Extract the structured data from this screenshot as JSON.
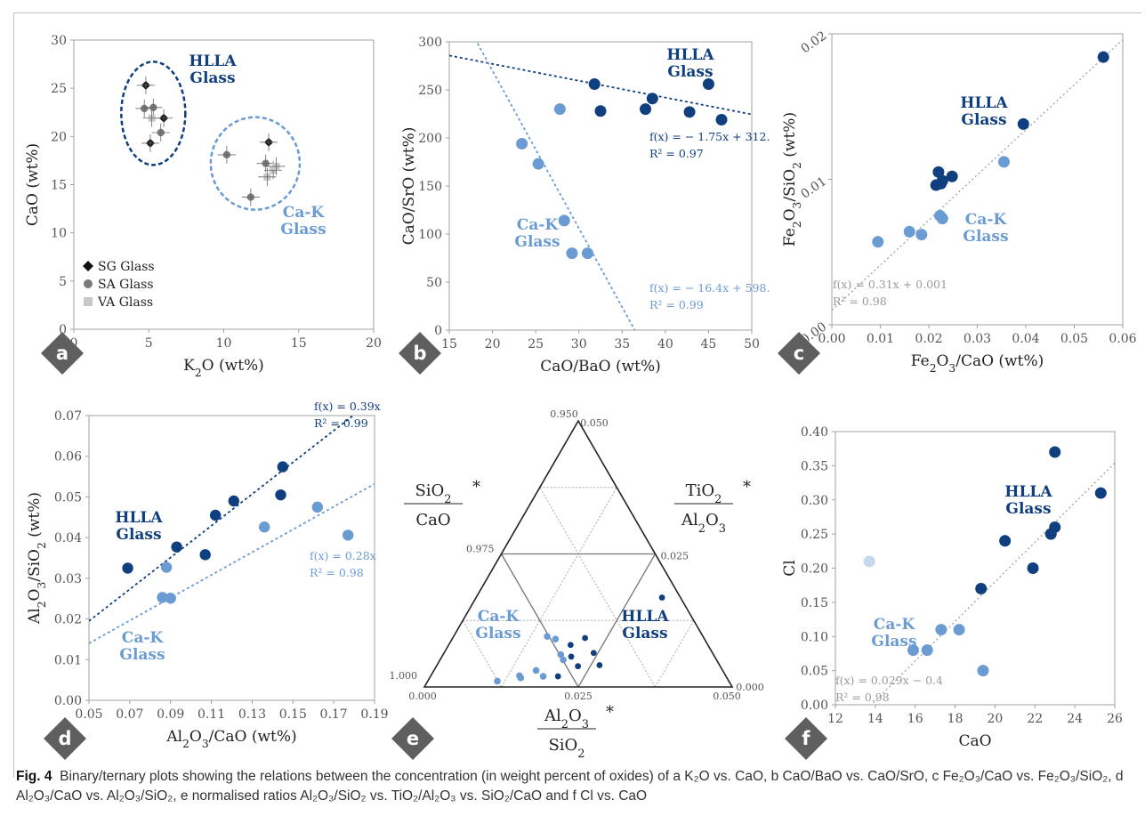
{
  "caption": {
    "label": "Fig. 4",
    "text": "Binary/ternary plots showing the relations between the concentration (in weight percent of oxides) of a K₂O vs. CaO, b CaO/BaO vs. CaO/SrO, c Fe₂O₃/CaO vs. Fe₂O₃/SiO₂, d Al₂O₃/CaO vs. Al₂O₃/SiO₂, e normalised ratios Al₂O₃/SiO₂ vs. TiO₂/Al₂O₃ vs. SiO₂/CaO and f Cl vs. CaO"
  },
  "colors": {
    "hlla": "#103f7f",
    "cak": "#6b9bd3",
    "light": "#c5d8ee",
    "grey": "#9a9a9a"
  },
  "chart_data": [
    {
      "id": "a",
      "type": "scatter",
      "panel_label": "a",
      "xlabel": "K₂O (wt%)",
      "ylabel": "CaO (wt%)",
      "xlim": [
        0,
        20
      ],
      "ylim": [
        0,
        30
      ],
      "xticks": [
        "0",
        "5",
        "10",
        "15",
        "20"
      ],
      "yticks": [
        "0",
        "5",
        "10",
        "15",
        "20",
        "25",
        "30"
      ],
      "series": [
        {
          "name": "SG Glass",
          "marker": "diamond",
          "points": [
            [
              4.8,
              25.3
            ],
            [
              5.1,
              19.3
            ],
            [
              6.0,
              21.9
            ],
            [
              13.0,
              19.4
            ]
          ]
        },
        {
          "name": "SA Glass",
          "marker": "circle",
          "points": [
            [
              4.7,
              22.9
            ],
            [
              5.3,
              23.0
            ],
            [
              5.8,
              20.4
            ],
            [
              10.2,
              18.1
            ],
            [
              12.8,
              17.2
            ],
            [
              11.8,
              13.7
            ]
          ]
        },
        {
          "name": "VA Glass",
          "marker": "square",
          "points": [
            [
              5.2,
              21.9
            ],
            [
              13.3,
              16.5
            ],
            [
              12.9,
              15.8
            ],
            [
              13.5,
              16.9
            ]
          ]
        }
      ],
      "annotations": [
        {
          "text": [
            "HLLA",
            "Glass"
          ],
          "color": "hlla"
        },
        {
          "text": [
            "Ca-K",
            "Glass"
          ],
          "color": "cak"
        }
      ],
      "legend_position": "bottom-left"
    },
    {
      "id": "b",
      "type": "scatter",
      "panel_label": "b",
      "xlabel": "CaO/BaO (wt%)",
      "ylabel": "CaO/SrO (wt%)",
      "xlim": [
        15,
        50
      ],
      "ylim": [
        0,
        300
      ],
      "xticks": [
        "15",
        "20",
        "25",
        "30",
        "35",
        "40",
        "45",
        "50"
      ],
      "yticks": [
        "0",
        "50",
        "100",
        "150",
        "200",
        "250",
        "300"
      ],
      "series": [
        {
          "name": "HLLA",
          "points": [
            [
              31.8,
              256
            ],
            [
              32.5,
              228
            ],
            [
              38.5,
              241
            ],
            [
              37.7,
              230
            ],
            [
              42.8,
              227
            ],
            [
              45.0,
              256
            ],
            [
              46.5,
              219
            ]
          ]
        },
        {
          "name": "Ca-K",
          "points": [
            [
              27.8,
              230
            ],
            [
              23.4,
              194
            ],
            [
              25.3,
              173
            ],
            [
              28.3,
              114
            ],
            [
              29.2,
              80
            ],
            [
              31.0,
              80
            ]
          ]
        }
      ],
      "trendlines": [
        {
          "series": "HLLA",
          "equation": "f(x) = − 1.75x + 312.",
          "r2": "R² = 0.97",
          "slope": -1.75,
          "intercept": 312
        },
        {
          "series": "Ca-K",
          "equation": "f(x) = − 16.4x + 598.",
          "r2": "R² = 0.99",
          "slope": -16.4,
          "intercept": 598
        }
      ],
      "annotations": [
        {
          "text": [
            "HLLA",
            "Glass"
          ],
          "color": "hlla"
        },
        {
          "text": [
            "Ca-K",
            "Glass"
          ],
          "color": "cak"
        }
      ]
    },
    {
      "id": "c",
      "type": "scatter",
      "panel_label": "c",
      "xlabel": "Fe₂O₃/CaO (wt%)",
      "ylabel": "Fe₂O₃/SiO₂ (wt%)",
      "xlim": [
        0,
        0.06
      ],
      "ylim": [
        0,
        0.02
      ],
      "xticks": [
        "0.00",
        "0.01",
        "0.02",
        "0.03",
        "0.04",
        "0.05",
        "0.06"
      ],
      "yticks": [
        "0.00",
        "0.01",
        "0.02"
      ],
      "series": [
        {
          "name": "HLLA",
          "points": [
            [
              0.056,
              0.0184
            ],
            [
              0.0395,
              0.0138
            ],
            [
              0.022,
              0.0105
            ],
            [
              0.0228,
              0.0099
            ],
            [
              0.0225,
              0.0097
            ],
            [
              0.0248,
              0.0102
            ],
            [
              0.0215,
              0.0096
            ]
          ]
        },
        {
          "name": "Ca-K",
          "points": [
            [
              0.0355,
              0.0112
            ],
            [
              0.0223,
              0.0075
            ],
            [
              0.0228,
              0.0073
            ],
            [
              0.016,
              0.0064
            ],
            [
              0.0185,
              0.0062
            ],
            [
              0.0095,
              0.0057
            ]
          ]
        }
      ],
      "trendlines": [
        {
          "series": "all",
          "equation": "f(x) = 0.31x + 0.001",
          "r2": "R² = 0.98",
          "slope": 0.31,
          "intercept": 0.001
        }
      ],
      "annotations": [
        {
          "text": [
            "HLLA",
            "Glass"
          ],
          "color": "hlla"
        },
        {
          "text": [
            "Ca-K",
            "Glass"
          ],
          "color": "cak"
        }
      ]
    },
    {
      "id": "d",
      "type": "scatter",
      "panel_label": "d",
      "xlabel": "Al₂O₃/CaO (wt%)",
      "ylabel": "Al₂O₃/SiO₂ (wt%)",
      "xlim": [
        0.05,
        0.19
      ],
      "ylim": [
        0,
        0.07
      ],
      "xticks": [
        "0.05",
        "0.07",
        "0.09",
        "0.11",
        "0.13",
        "0.15",
        "0.17",
        "0.19"
      ],
      "yticks": [
        "0.00",
        "0.01",
        "0.02",
        "0.03",
        "0.04",
        "0.05",
        "0.06",
        "0.07"
      ],
      "series": [
        {
          "name": "HLLA",
          "points": [
            [
              0.069,
              0.0325
            ],
            [
              0.093,
              0.0377
            ],
            [
              0.107,
              0.0358
            ],
            [
              0.112,
              0.0455
            ],
            [
              0.121,
              0.049
            ],
            [
              0.144,
              0.0505
            ],
            [
              0.145,
              0.0574
            ]
          ]
        },
        {
          "name": "Ca-K",
          "points": [
            [
              0.086,
              0.0253
            ],
            [
              0.09,
              0.0251
            ],
            [
              0.088,
              0.0327
            ],
            [
              0.136,
              0.0426
            ],
            [
              0.162,
              0.0475
            ],
            [
              0.177,
              0.0406
            ]
          ]
        }
      ],
      "trendlines": [
        {
          "series": "HLLA",
          "equation": "f(x) = 0.39x",
          "r2": "R² = 0.99",
          "slope": 0.39,
          "intercept": 0
        },
        {
          "series": "Ca-K",
          "equation": "f(x) = 0.28x",
          "r2": "R² = 0.98",
          "slope": 0.28,
          "intercept": 0
        }
      ],
      "annotations": [
        {
          "text": [
            "HLLA",
            "Glass"
          ],
          "color": "hlla"
        },
        {
          "text": [
            "Ca-K",
            "Glass"
          ],
          "color": "cak"
        }
      ]
    },
    {
      "id": "e",
      "type": "scatter",
      "panel_label": "e",
      "subtype": "ternary",
      "labels": {
        "top": [
          "SiO₂",
          "CaO"
        ],
        "right": [
          "TiO₂",
          "Al₂O₃"
        ],
        "bottom": [
          "Al₂O₃",
          "SiO₂"
        ],
        "star": "*"
      },
      "ticks": {
        "top_left": "0.950",
        "top_right": "0.050",
        "mid_left": "0.975",
        "mid_right": "0.025",
        "bottom_left_upper": "1.000",
        "bottom_left": "0.000",
        "bottom_mid": "0.025",
        "bottom_right": "0.050",
        "right_end": "0.000"
      },
      "series": [
        {
          "name": "HLLA",
          "points": [
            [
              0.0302,
              0.0168
            ],
            [
              0.0198,
              0.0079
            ],
            [
              0.0215,
              0.0092
            ],
            [
              0.0243,
              0.0064
            ],
            [
              0.021,
              0.0057
            ],
            [
              0.0264,
              0.0041
            ],
            [
              0.023,
              0.0039
            ],
            [
              0.0207,
              0.002
            ]
          ]
        },
        {
          "name": "Ca-K",
          "points": [
            [
              0.0152,
              0.0095
            ],
            [
              0.0168,
              0.009
            ],
            [
              0.0191,
              0.0061
            ],
            [
              0.02,
              0.0051
            ],
            [
              0.0166,
              0.0031
            ],
            [
              0.0148,
              0.0017
            ],
            [
              0.0183,
              0.002
            ],
            [
              0.0144,
              0.0021
            ],
            [
              0.0113,
              0.0011
            ]
          ]
        }
      ],
      "annotations": [
        {
          "text": [
            "HLLA",
            "Glass"
          ],
          "color": "hlla"
        },
        {
          "text": [
            "Ca-K",
            "Glass"
          ],
          "color": "cak"
        }
      ]
    },
    {
      "id": "f",
      "type": "scatter",
      "panel_label": "f",
      "xlabel": "CaO",
      "ylabel": "Cl",
      "xlim": [
        12,
        26
      ],
      "ylim": [
        0,
        0.4
      ],
      "xticks": [
        "12",
        "14",
        "16",
        "18",
        "20",
        "22",
        "24",
        "26"
      ],
      "yticks": [
        "0.00",
        "0.05",
        "0.10",
        "0.15",
        "0.20",
        "0.25",
        "0.30",
        "0.35",
        "0.40"
      ],
      "series": [
        {
          "name": "HLLA",
          "points": [
            [
              23.0,
              0.37
            ],
            [
              25.3,
              0.31
            ],
            [
              20.5,
              0.24
            ],
            [
              22.8,
              0.25
            ],
            [
              23.0,
              0.26
            ],
            [
              21.9,
              0.2
            ],
            [
              19.3,
              0.17
            ]
          ]
        },
        {
          "name": "Ca-K",
          "points": [
            [
              17.3,
              0.11
            ],
            [
              18.2,
              0.11
            ],
            [
              15.9,
              0.08
            ],
            [
              16.6,
              0.08
            ],
            [
              19.4,
              0.05
            ]
          ]
        },
        {
          "name": "light",
          "points": [
            [
              13.7,
              0.21
            ]
          ]
        }
      ],
      "trendlines": [
        {
          "series": "all",
          "equation": "f(x) = 0.029x − 0.4",
          "r2": "R² = 0.98",
          "slope": 0.029,
          "intercept": -0.4
        }
      ],
      "annotations": [
        {
          "text": [
            "HLLA",
            "Glass"
          ],
          "color": "hlla"
        },
        {
          "text": [
            "Ca-K",
            "Glass"
          ],
          "color": "cak"
        }
      ]
    }
  ]
}
